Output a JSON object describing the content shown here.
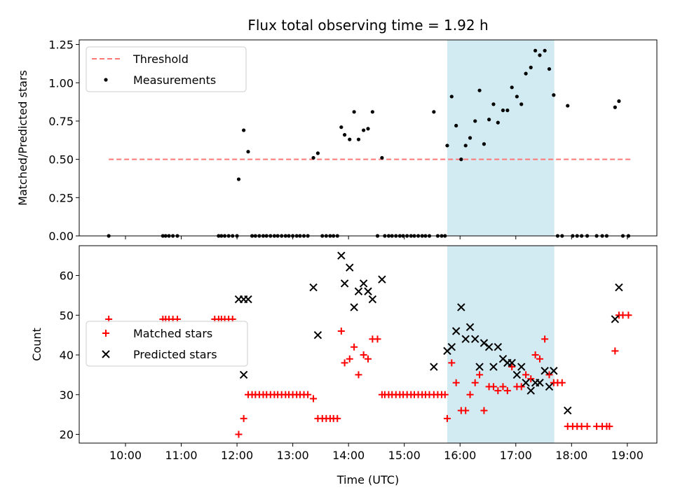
{
  "chart_data": [
    {
      "type": "scatter",
      "title": "Flux total observing time = 1.92 h",
      "xlabel": "",
      "ylabel": "Matched/Predicted stars",
      "xlim_hours": [
        9.17,
        19.53
      ],
      "ylim": [
        0,
        1.28
      ],
      "yticks": [
        0,
        0.25,
        0.5,
        0.75,
        1.0,
        1.25
      ],
      "ytick_labels": [
        "0.00",
        "0.25",
        "0.50",
        "0.75",
        "1.00",
        "1.25"
      ],
      "xticks_hours": [
        10,
        11,
        12,
        13,
        14,
        15,
        16,
        17,
        18,
        19
      ],
      "legend": {
        "loc": "upper left",
        "labels": [
          "Threshold",
          "Measurements"
        ]
      },
      "threshold": {
        "y": 0.5,
        "x_start": 9.7,
        "x_end": 19.07,
        "color": "#ff7777"
      },
      "highlight": {
        "x_start": 15.77,
        "x_end": 17.69,
        "color": "#add8e6"
      },
      "series": [
        {
          "name": "Measurements",
          "marker": "dot",
          "color": "#000000",
          "points": [
            [
              9.7,
              0
            ],
            [
              10.67,
              0
            ],
            [
              10.72,
              0
            ],
            [
              10.78,
              0
            ],
            [
              10.85,
              0
            ],
            [
              10.93,
              0
            ],
            [
              11.67,
              0
            ],
            [
              11.72,
              0
            ],
            [
              11.78,
              0
            ],
            [
              11.85,
              0
            ],
            [
              11.92,
              0
            ],
            [
              12.0,
              0
            ],
            [
              12.03,
              0.37
            ],
            [
              12.12,
              0.69
            ],
            [
              12.2,
              0.55
            ],
            [
              12.27,
              0
            ],
            [
              12.33,
              0
            ],
            [
              12.4,
              0
            ],
            [
              12.47,
              0
            ],
            [
              12.53,
              0
            ],
            [
              12.6,
              0
            ],
            [
              12.67,
              0
            ],
            [
              12.73,
              0
            ],
            [
              12.8,
              0
            ],
            [
              12.87,
              0
            ],
            [
              12.93,
              0
            ],
            [
              13.0,
              0
            ],
            [
              13.07,
              0
            ],
            [
              13.13,
              0
            ],
            [
              13.2,
              0
            ],
            [
              13.27,
              0
            ],
            [
              13.37,
              0.51
            ],
            [
              13.45,
              0.54
            ],
            [
              13.53,
              0
            ],
            [
              13.6,
              0
            ],
            [
              13.67,
              0
            ],
            [
              13.73,
              0
            ],
            [
              13.8,
              0
            ],
            [
              13.87,
              0.71
            ],
            [
              13.93,
              0.66
            ],
            [
              14.02,
              0.63
            ],
            [
              14.1,
              0.81
            ],
            [
              14.18,
              0.63
            ],
            [
              14.27,
              0.69
            ],
            [
              14.35,
              0.7
            ],
            [
              14.43,
              0.81
            ],
            [
              14.52,
              0
            ],
            [
              14.6,
              0.51
            ],
            [
              14.65,
              0
            ],
            [
              14.72,
              0
            ],
            [
              14.78,
              0
            ],
            [
              14.85,
              0
            ],
            [
              14.92,
              0
            ],
            [
              14.98,
              0
            ],
            [
              15.05,
              0
            ],
            [
              15.12,
              0
            ],
            [
              15.18,
              0
            ],
            [
              15.25,
              0
            ],
            [
              15.32,
              0
            ],
            [
              15.38,
              0
            ],
            [
              15.45,
              0
            ],
            [
              15.53,
              0.81
            ],
            [
              15.6,
              0
            ],
            [
              15.67,
              0
            ],
            [
              15.73,
              0
            ],
            [
              15.77,
              0.59
            ],
            [
              15.85,
              0.91
            ],
            [
              15.93,
              0.72
            ],
            [
              16.02,
              0.5
            ],
            [
              16.1,
              0.59
            ],
            [
              16.18,
              0.64
            ],
            [
              16.27,
              0.75
            ],
            [
              16.35,
              0.95
            ],
            [
              16.43,
              0.6
            ],
            [
              16.52,
              0.76
            ],
            [
              16.6,
              0.86
            ],
            [
              16.68,
              0.74
            ],
            [
              16.77,
              0.82
            ],
            [
              16.85,
              0.82
            ],
            [
              16.93,
              0.97
            ],
            [
              17.02,
              0.91
            ],
            [
              17.1,
              0.86
            ],
            [
              17.18,
              1.06
            ],
            [
              17.27,
              1.1
            ],
            [
              17.35,
              1.21
            ],
            [
              17.43,
              1.18
            ],
            [
              17.52,
              1.21
            ],
            [
              17.6,
              1.09
            ],
            [
              17.68,
              0.92
            ],
            [
              17.75,
              0
            ],
            [
              17.83,
              0
            ],
            [
              17.93,
              0.85
            ],
            [
              18.02,
              0
            ],
            [
              18.1,
              0
            ],
            [
              18.18,
              0
            ],
            [
              18.28,
              0
            ],
            [
              18.45,
              0
            ],
            [
              18.55,
              0
            ],
            [
              18.63,
              0
            ],
            [
              18.78,
              0.84
            ],
            [
              18.85,
              0.88
            ],
            [
              18.92,
              0
            ],
            [
              19.02,
              0
            ]
          ]
        }
      ]
    },
    {
      "type": "scatter",
      "title": "",
      "xlabel": "Time (UTC)",
      "ylabel": "Count",
      "xlim_hours": [
        9.17,
        19.53
      ],
      "ylim": [
        17.8,
        67.5
      ],
      "yticks": [
        20,
        30,
        40,
        50,
        60
      ],
      "ytick_labels": [
        "20",
        "30",
        "40",
        "50",
        "60"
      ],
      "xticks_hours": [
        10,
        11,
        12,
        13,
        14,
        15,
        16,
        17,
        18,
        19
      ],
      "xtick_labels": [
        "10:00",
        "11:00",
        "12:00",
        "13:00",
        "14:00",
        "15:00",
        "16:00",
        "17:00",
        "18:00",
        "19:00"
      ],
      "legend": {
        "loc": "center left",
        "labels": [
          "Matched stars",
          "Predicted stars"
        ]
      },
      "highlight": {
        "x_start": 15.77,
        "x_end": 17.69,
        "color": "#add8e6"
      },
      "series": [
        {
          "name": "Matched stars",
          "marker": "plus",
          "color": "#ff0000",
          "points": [
            [
              9.7,
              49
            ],
            [
              10.67,
              49
            ],
            [
              10.72,
              49
            ],
            [
              10.78,
              49
            ],
            [
              10.85,
              49
            ],
            [
              10.93,
              49
            ],
            [
              11.6,
              49
            ],
            [
              11.67,
              49
            ],
            [
              11.72,
              49
            ],
            [
              11.78,
              49
            ],
            [
              11.85,
              49
            ],
            [
              11.92,
              49
            ],
            [
              12.03,
              20
            ],
            [
              12.12,
              24
            ],
            [
              12.2,
              30
            ],
            [
              12.27,
              30
            ],
            [
              12.33,
              30
            ],
            [
              12.4,
              30
            ],
            [
              12.47,
              30
            ],
            [
              12.53,
              30
            ],
            [
              12.6,
              30
            ],
            [
              12.67,
              30
            ],
            [
              12.73,
              30
            ],
            [
              12.8,
              30
            ],
            [
              12.87,
              30
            ],
            [
              12.93,
              30
            ],
            [
              13.0,
              30
            ],
            [
              13.07,
              30
            ],
            [
              13.13,
              30
            ],
            [
              13.2,
              30
            ],
            [
              13.27,
              30
            ],
            [
              13.37,
              29
            ],
            [
              13.45,
              24
            ],
            [
              13.53,
              24
            ],
            [
              13.6,
              24
            ],
            [
              13.67,
              24
            ],
            [
              13.73,
              24
            ],
            [
              13.8,
              24
            ],
            [
              13.87,
              46
            ],
            [
              13.93,
              38
            ],
            [
              14.02,
              39
            ],
            [
              14.1,
              42
            ],
            [
              14.18,
              35
            ],
            [
              14.27,
              40
            ],
            [
              14.35,
              39
            ],
            [
              14.43,
              44
            ],
            [
              14.52,
              44
            ],
            [
              14.6,
              30
            ],
            [
              14.65,
              30
            ],
            [
              14.72,
              30
            ],
            [
              14.78,
              30
            ],
            [
              14.85,
              30
            ],
            [
              14.92,
              30
            ],
            [
              14.98,
              30
            ],
            [
              15.05,
              30
            ],
            [
              15.12,
              30
            ],
            [
              15.18,
              30
            ],
            [
              15.25,
              30
            ],
            [
              15.32,
              30
            ],
            [
              15.38,
              30
            ],
            [
              15.45,
              30
            ],
            [
              15.53,
              30
            ],
            [
              15.6,
              30
            ],
            [
              15.67,
              30
            ],
            [
              15.73,
              30
            ],
            [
              15.77,
              24
            ],
            [
              15.85,
              38
            ],
            [
              15.93,
              33
            ],
            [
              16.02,
              26
            ],
            [
              16.1,
              26
            ],
            [
              16.18,
              30
            ],
            [
              16.27,
              33
            ],
            [
              16.35,
              35
            ],
            [
              16.43,
              26
            ],
            [
              16.52,
              32
            ],
            [
              16.6,
              32
            ],
            [
              16.68,
              31
            ],
            [
              16.77,
              32
            ],
            [
              16.85,
              31
            ],
            [
              16.93,
              37
            ],
            [
              17.02,
              32
            ],
            [
              17.1,
              32
            ],
            [
              17.18,
              35
            ],
            [
              17.27,
              34
            ],
            [
              17.35,
              40
            ],
            [
              17.43,
              39
            ],
            [
              17.52,
              44
            ],
            [
              17.6,
              35
            ],
            [
              17.68,
              33
            ],
            [
              17.75,
              33
            ],
            [
              17.83,
              33
            ],
            [
              17.93,
              22
            ],
            [
              18.02,
              22
            ],
            [
              18.1,
              22
            ],
            [
              18.18,
              22
            ],
            [
              18.28,
              22
            ],
            [
              18.45,
              22
            ],
            [
              18.55,
              22
            ],
            [
              18.63,
              22
            ],
            [
              18.68,
              22
            ],
            [
              18.78,
              41
            ],
            [
              18.85,
              50
            ],
            [
              18.92,
              50
            ],
            [
              19.02,
              50
            ]
          ]
        },
        {
          "name": "Predicted stars",
          "marker": "x",
          "color": "#000000",
          "points": [
            [
              12.03,
              54
            ],
            [
              12.12,
              35
            ],
            [
              12.12,
              54
            ],
            [
              12.2,
              54
            ],
            [
              13.37,
              57
            ],
            [
              13.45,
              45
            ],
            [
              13.87,
              65
            ],
            [
              13.93,
              58
            ],
            [
              14.02,
              62
            ],
            [
              14.1,
              52
            ],
            [
              14.18,
              56
            ],
            [
              14.27,
              58
            ],
            [
              14.35,
              56
            ],
            [
              14.43,
              54
            ],
            [
              14.6,
              59
            ],
            [
              15.53,
              37
            ],
            [
              15.77,
              41
            ],
            [
              15.85,
              42
            ],
            [
              15.93,
              46
            ],
            [
              16.02,
              52
            ],
            [
              16.1,
              44
            ],
            [
              16.18,
              47
            ],
            [
              16.27,
              44
            ],
            [
              16.35,
              37
            ],
            [
              16.43,
              43
            ],
            [
              16.52,
              42
            ],
            [
              16.6,
              37
            ],
            [
              16.68,
              42
            ],
            [
              16.77,
              39
            ],
            [
              16.85,
              38
            ],
            [
              16.93,
              38
            ],
            [
              17.02,
              35
            ],
            [
              17.1,
              37
            ],
            [
              17.18,
              33
            ],
            [
              17.27,
              31
            ],
            [
              17.35,
              33
            ],
            [
              17.43,
              33
            ],
            [
              17.52,
              36
            ],
            [
              17.6,
              32
            ],
            [
              17.68,
              36
            ],
            [
              17.93,
              26
            ],
            [
              18.78,
              49
            ],
            [
              18.85,
              57
            ]
          ]
        }
      ]
    }
  ]
}
